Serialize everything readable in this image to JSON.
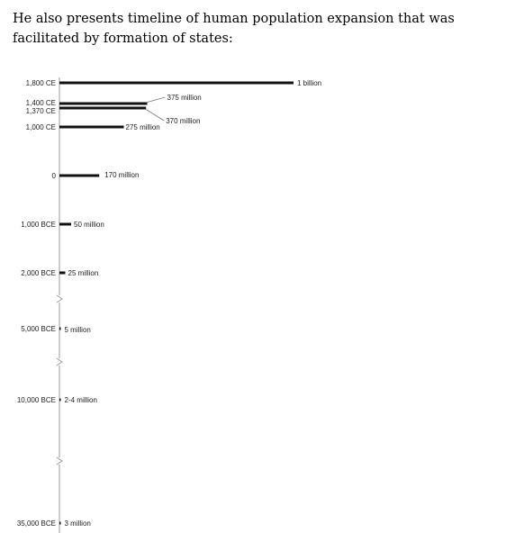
{
  "intro_text": "He also presents timeline of human population expansion that was facilitated by formation of states:",
  "colors": {
    "bar": "#111111",
    "axis": "#9a9a9a",
    "text": "#222222",
    "leader": "#777777"
  },
  "chart_data": {
    "type": "bar",
    "orientation": "horizontal",
    "title": "",
    "xlabel": "",
    "ylabel": "",
    "grid": false,
    "legend": "none",
    "axis_breaks": true,
    "unit": "million people",
    "categories": [
      "1,800 CE",
      "1,400 CE",
      "1,370 CE",
      "1,000 CE",
      "0",
      "1,000 BCE",
      "2,000 BCE",
      "5,000 BCE",
      "10,000 BCE",
      "35,000 BCE"
    ],
    "values": [
      1000,
      375,
      370,
      275,
      170,
      50,
      25,
      5,
      3,
      3
    ],
    "labels": [
      "1 billion",
      "375 million",
      "370 million",
      "275 million",
      "170 million",
      "50 million",
      "25 million",
      "5 million",
      "2-4 million",
      "3 million"
    ]
  }
}
